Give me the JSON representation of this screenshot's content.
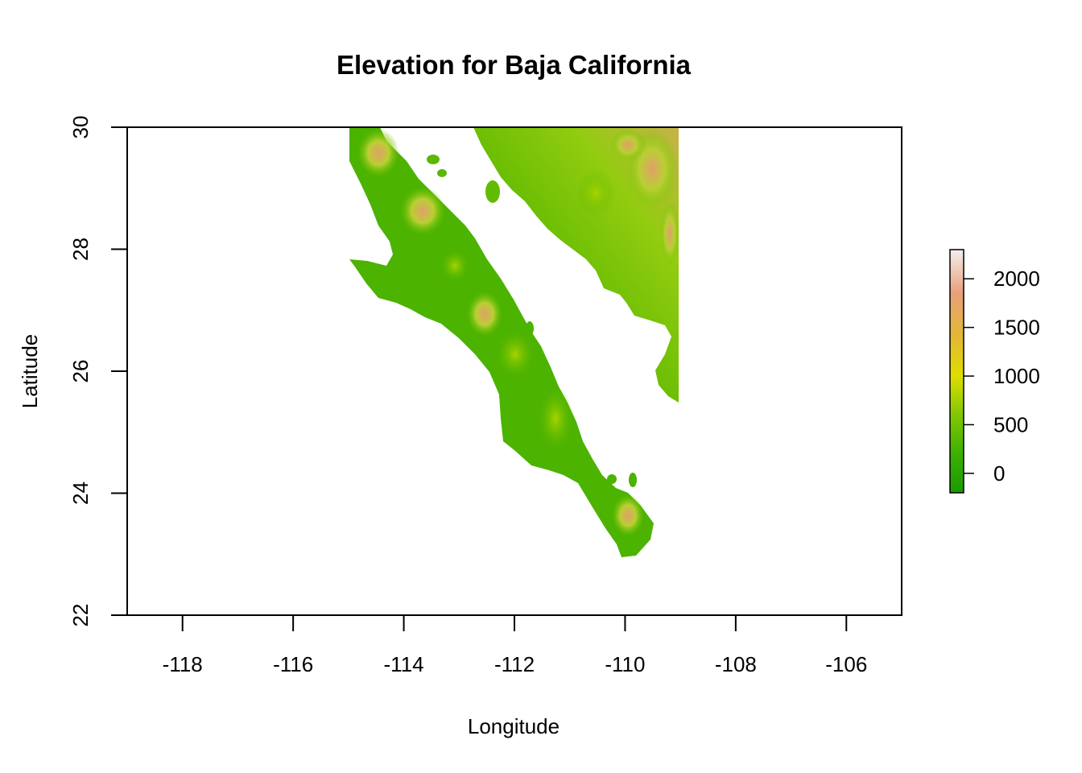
{
  "chart_data": {
    "type": "raster-map",
    "title": "Elevation for Baja California",
    "xlabel": "Longitude",
    "ylabel": "Latitude",
    "xlim": [
      -119,
      -105
    ],
    "ylim": [
      22,
      30
    ],
    "x_ticks": [
      -118,
      -116,
      -114,
      -112,
      -110,
      -108,
      -106
    ],
    "y_ticks": [
      22,
      24,
      26,
      28,
      30
    ],
    "legend": {
      "placement": "right",
      "ticks": [
        0,
        500,
        1000,
        1500,
        2000
      ],
      "range": [
        -200,
        2300
      ],
      "colors": [
        "#1a9a00",
        "#4dbb00",
        "#9dd000",
        "#e0e000",
        "#e6b43a",
        "#e8a68a",
        "#f2f2f2"
      ]
    },
    "land_colors": {
      "low": "#3fae00",
      "mid": "#7cc800",
      "high": "#d9c26a",
      "peak": "#e7a899"
    }
  }
}
